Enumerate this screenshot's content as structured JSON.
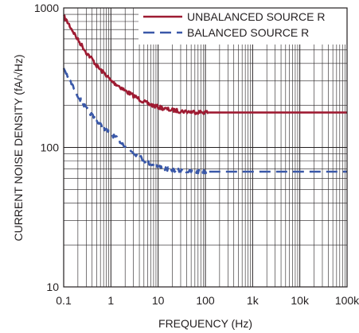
{
  "chart_data": {
    "type": "line",
    "title": "",
    "xlabel": "FREQUENCY (Hz)",
    "ylabel": "CURRENT NOISE DENSITY (fA/√Hz)",
    "x_scale": "log",
    "y_scale": "log",
    "xlim": [
      0.1,
      100000
    ],
    "ylim": [
      10,
      1000
    ],
    "grid": true,
    "legend_position": "top-right",
    "x_ticks": [
      {
        "value": 0.1,
        "label": "0.1"
      },
      {
        "value": 1,
        "label": "1"
      },
      {
        "value": 10,
        "label": "10"
      },
      {
        "value": 100,
        "label": "100"
      },
      {
        "value": 1000,
        "label": "1k"
      },
      {
        "value": 10000,
        "label": "10k"
      },
      {
        "value": 100000,
        "label": "100k"
      }
    ],
    "y_ticks": [
      {
        "value": 10,
        "label": "10"
      },
      {
        "value": 100,
        "label": "100"
      },
      {
        "value": 1000,
        "label": "1000"
      }
    ],
    "series": [
      {
        "name": "UNBALANCED SOURCE R",
        "color": "#9e1b32",
        "style": "solid",
        "x": [
          0.1,
          0.13,
          0.17,
          0.2,
          0.25,
          0.3,
          0.4,
          0.5,
          0.6,
          0.8,
          1,
          1.5,
          2,
          3,
          4,
          5,
          7,
          10,
          15,
          20,
          30,
          50,
          70,
          100,
          120
        ],
        "y": [
          870,
          760,
          650,
          590,
          530,
          480,
          430,
          385,
          360,
          330,
          300,
          275,
          255,
          235,
          222,
          212,
          202,
          195,
          188,
          185,
          182,
          180,
          179,
          179,
          178
        ]
      },
      {
        "name": "",
        "color": "#9e1b32",
        "style": "solid",
        "x": [
          120,
          100000
        ],
        "y": [
          178,
          178
        ]
      },
      {
        "name": "BALANCED SOURCE R",
        "color": "#3a58a8",
        "style": "dashed",
        "x": [
          0.1,
          0.13,
          0.17,
          0.2,
          0.25,
          0.3,
          0.4,
          0.5,
          0.6,
          0.8,
          1,
          1.5,
          2,
          3,
          4,
          5,
          7,
          10,
          15,
          20,
          30,
          50,
          70,
          100,
          120,
          100000
        ],
        "y": [
          370,
          310,
          260,
          235,
          210,
          190,
          170,
          155,
          145,
          133,
          125,
          112,
          103,
          92,
          86,
          81,
          76,
          73,
          70,
          69,
          68,
          67,
          67,
          67,
          67,
          67
        ]
      }
    ]
  }
}
